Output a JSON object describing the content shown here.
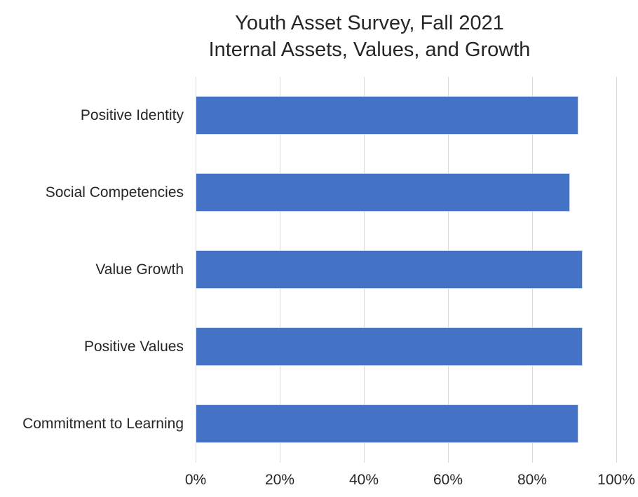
{
  "chart_data": {
    "type": "bar",
    "orientation": "horizontal",
    "title_lines": [
      "Youth Asset Survey, Fall 2021",
      "Internal Assets, Values, and Growth"
    ],
    "categories": [
      "Positive Identity",
      "Social Competencies",
      "Value Growth",
      "Positive Values",
      "Commitment to Learning"
    ],
    "values": [
      91,
      89,
      92,
      92,
      91
    ],
    "value_unit": "%",
    "x_ticks": [
      "0%",
      "20%",
      "40%",
      "60%",
      "80%",
      "100%"
    ],
    "xlim": [
      0,
      100
    ],
    "grid": true,
    "legend": false,
    "colors": {
      "bar_fill": "#4472C4",
      "bar_border": "#CBD7F0",
      "gridline": "#D9D9D9",
      "text": "#262626",
      "background": "#FFFFFF"
    }
  }
}
